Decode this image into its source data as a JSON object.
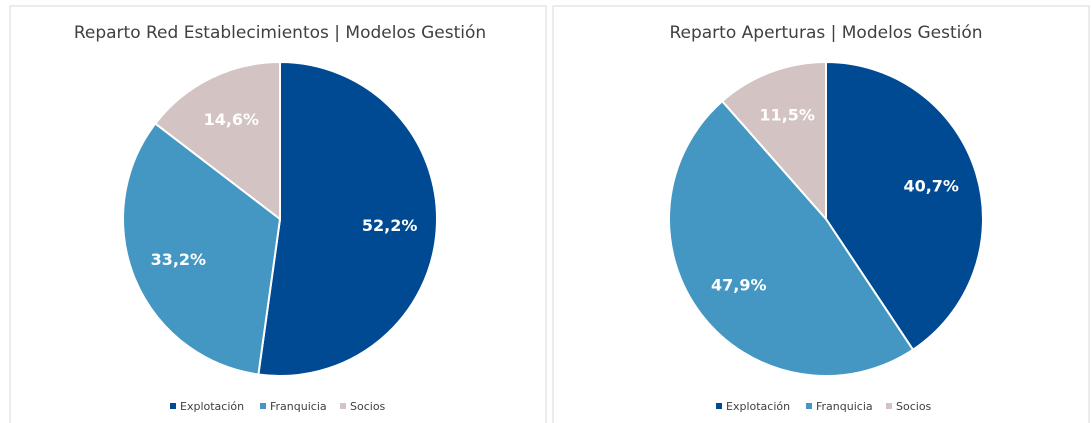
{
  "chart_data": [
    {
      "type": "pie",
      "title": "Reparto Red Establecimientos | Modelos Gestión",
      "categories": [
        "Explotación",
        "Franquicia",
        "Socios"
      ],
      "values": [
        52.2,
        33.2,
        14.6
      ],
      "value_labels": [
        "52,2%",
        "33,2%",
        "14,6%"
      ],
      "colors": [
        "#004a93",
        "#4397c2",
        "#d3c3c3"
      ],
      "legend": "bottom"
    },
    {
      "type": "pie",
      "title": "Reparto Aperturas | Modelos Gestión",
      "categories": [
        "Explotación",
        "Franquicia",
        "Socios"
      ],
      "values": [
        40.7,
        47.9,
        11.5
      ],
      "value_labels": [
        "40,7%",
        "47,9%",
        "11,5%"
      ],
      "colors": [
        "#004a93",
        "#4397c2",
        "#d3c3c3"
      ],
      "legend": "bottom"
    }
  ]
}
